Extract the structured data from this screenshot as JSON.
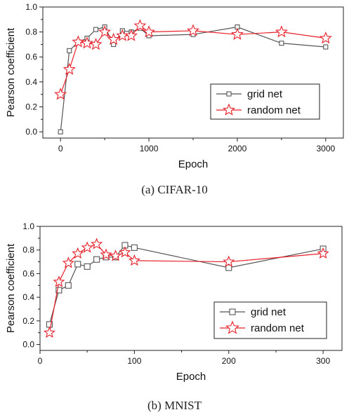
{
  "chart_data": [
    {
      "type": "line",
      "caption": "(a) CIFAR-10",
      "xlabel": "Epoch",
      "ylabel": "Pearson coefficient",
      "xlim": [
        -200,
        3200
      ],
      "ylim": [
        -0.05,
        1.0
      ],
      "xticks": [
        0,
        1000,
        2000,
        3000
      ],
      "xtick_labels": [
        "0",
        "1000",
        "2000",
        "3000"
      ],
      "yticks": [
        0.0,
        0.2,
        0.4,
        0.6,
        0.8,
        1.0
      ],
      "ytick_labels": [
        "0.0",
        "0.2",
        "0.4",
        "0.6",
        "0.8",
        "1.0"
      ],
      "legend_position": "bottom-right",
      "series": [
        {
          "name": "grid net",
          "marker": "square",
          "color": "#555555",
          "x": [
            0,
            100,
            200,
            300,
            400,
            500,
            600,
            700,
            800,
            900,
            1000,
            1500,
            2000,
            2500,
            3000
          ],
          "y": [
            0.0,
            0.65,
            0.72,
            0.75,
            0.82,
            0.84,
            0.7,
            0.81,
            0.8,
            0.83,
            0.77,
            0.78,
            0.84,
            0.71,
            0.68
          ]
        },
        {
          "name": "random net",
          "marker": "star",
          "color": "#e8202a",
          "x": [
            0,
            100,
            200,
            300,
            400,
            500,
            600,
            700,
            800,
            900,
            1000,
            1500,
            2000,
            2500,
            3000
          ],
          "y": [
            0.3,
            0.5,
            0.72,
            0.71,
            0.7,
            0.8,
            0.74,
            0.77,
            0.77,
            0.85,
            0.8,
            0.81,
            0.78,
            0.8,
            0.75
          ]
        }
      ]
    },
    {
      "type": "line",
      "caption": "(b) MNIST",
      "xlabel": "Epoch",
      "ylabel": "Pearson coefficient",
      "xlim": [
        0,
        320
      ],
      "ylim": [
        -0.05,
        1.0
      ],
      "xticks": [
        0,
        100,
        200,
        300
      ],
      "xtick_labels": [
        "0",
        "100",
        "200",
        "300"
      ],
      "yticks": [
        0.0,
        0.2,
        0.4,
        0.6,
        0.8,
        1.0
      ],
      "ytick_labels": [
        "0.0",
        "0.2",
        "0.4",
        "0.6",
        "0.8",
        "1.0"
      ],
      "legend_position": "bottom-right",
      "series": [
        {
          "name": "grid net",
          "marker": "square",
          "color": "#555555",
          "x": [
            10,
            20,
            30,
            40,
            50,
            60,
            70,
            80,
            90,
            100,
            200,
            300
          ],
          "y": [
            0.17,
            0.46,
            0.5,
            0.68,
            0.66,
            0.72,
            0.74,
            0.74,
            0.84,
            0.82,
            0.65,
            0.81
          ]
        },
        {
          "name": "random net",
          "marker": "star",
          "color": "#e8202a",
          "x": [
            10,
            20,
            30,
            40,
            50,
            60,
            70,
            80,
            90,
            100,
            200,
            300
          ],
          "y": [
            0.1,
            0.53,
            0.69,
            0.77,
            0.82,
            0.85,
            0.76,
            0.75,
            0.78,
            0.71,
            0.7,
            0.77
          ]
        }
      ]
    }
  ]
}
